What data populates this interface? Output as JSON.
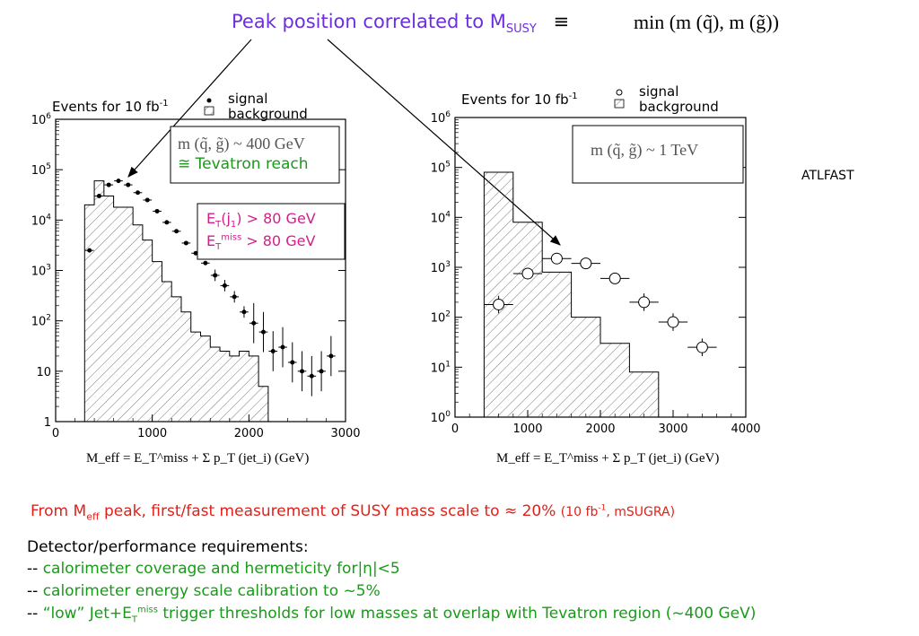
{
  "header": {
    "title_main": "Peak position correlated to M",
    "title_sub": "SUSY",
    "equiv": "≡",
    "min_expr": "min (m (q̃), m (g̃))"
  },
  "atlfast": "ATLFAST",
  "left_panel": {
    "events_label": "Events for 10 fb",
    "events_exp": "-1",
    "legend_signal": "signal",
    "legend_background": "background",
    "box1_line1": "m (q̃, g̃) ~ 400 GeV",
    "box1_line2": "≅ Tevatron reach",
    "box2_line1": "E",
    "box2_line1_sub": "T",
    "box2_line1_rest": "(j",
    "box2_line1_sub2": "1",
    "box2_line1_end": ") > 80 GeV",
    "box2_line2": "E",
    "box2_line2_sub": "T",
    "box2_line2_sup": "miss",
    "box2_line2_end": " > 80 GeV",
    "formula": "M_eff = E_T^miss + Σ p_T (jet_i)  (GeV)"
  },
  "right_panel": {
    "events_label": "Events for 10 fb",
    "events_exp": "-1",
    "legend_signal": "signal",
    "legend_background": "background",
    "box_line1": "m (q̃, g̃) ~ 1 TeV",
    "formula": "M_eff = E_T^miss + Σ p_T (jet_i)  (GeV)"
  },
  "conclusion": {
    "p1": "From M",
    "p1_sub": "eff",
    "p2": " peak, first/fast measurement of   SUSY   mass scale to ≈ 20%",
    "p3": "(10 fb",
    "p3_sup": "-1",
    "p4": ", mSUGRA)"
  },
  "requirements": {
    "title": "Detector/performance requirements:",
    "item1_prefix": "-- ",
    "item1": "calorimeter coverage and hermeticity for|η|<5",
    "item2_prefix": "-- ",
    "item2": "calorimeter energy scale calibration to ~5%",
    "item3_prefix": "-- ",
    "item3a": "“low” Jet+E",
    "item3_sub": "T",
    "item3_sup": "miss",
    "item3b": " trigger thresholds for low masses at overlap with Tevatron region (~400 GeV)"
  },
  "colors": {
    "title": "#6b2fe0",
    "green": "#1a9a1a",
    "magenta": "#d0208a",
    "red": "#e0201a"
  },
  "chart_data": [
    {
      "type": "bar",
      "title": "",
      "xlabel": "M_eff (GeV)",
      "ylabel": "Events for 10 fb-1",
      "xlim": [
        0,
        3000
      ],
      "ylim": [
        1,
        1000000
      ],
      "yscale": "log",
      "x_ticks": [
        "0",
        "1000",
        "2000",
        "3000"
      ],
      "y_ticks": [
        "1",
        "10",
        "10^2",
        "10^3",
        "10^4",
        "10^5",
        "10^6"
      ],
      "series": [
        {
          "name": "background",
          "style": "hatched-histogram",
          "x": [
            300,
            400,
            500,
            600,
            700,
            800,
            900,
            1000,
            1100,
            1200,
            1300,
            1400,
            1500,
            1600,
            1700,
            1800,
            1900,
            2000,
            2100,
            2200,
            2300,
            2400
          ],
          "values": [
            20000,
            60000,
            30000,
            18000,
            18000,
            8000,
            4000,
            1500,
            600,
            300,
            150,
            60,
            50,
            30,
            25,
            20,
            25,
            20,
            5,
            1,
            1,
            1
          ]
        },
        {
          "name": "signal",
          "style": "points",
          "x": [
            350,
            450,
            550,
            650,
            750,
            850,
            950,
            1050,
            1150,
            1250,
            1350,
            1450,
            1550,
            1650,
            1750,
            1850,
            1950,
            2050,
            2150,
            2250,
            2350,
            2450,
            2550,
            2650,
            2750,
            2850
          ],
          "values": [
            2500,
            30000,
            50000,
            60000,
            50000,
            35000,
            25000,
            15000,
            9000,
            6000,
            3500,
            2200,
            1400,
            800,
            500,
            300,
            150,
            90,
            60,
            25,
            30,
            15,
            10,
            8,
            10,
            20
          ]
        }
      ],
      "annotations": [
        "m (q̃, g̃) ~ 400 GeV",
        "≅ Tevatron reach",
        "ET(j1) > 80 GeV",
        "ETmiss > 80 GeV"
      ]
    },
    {
      "type": "bar",
      "title": "",
      "xlabel": "M_eff (GeV)",
      "ylabel": "Events for 10 fb-1",
      "xlim": [
        0,
        4000
      ],
      "ylim": [
        1,
        1000000
      ],
      "yscale": "log",
      "x_ticks": [
        "0",
        "1000",
        "2000",
        "3000",
        "4000"
      ],
      "y_ticks": [
        "10^0",
        "10^1",
        "10^2",
        "10^3",
        "10^4",
        "10^5",
        "10^6"
      ],
      "series": [
        {
          "name": "background",
          "style": "hatched-histogram",
          "x": [
            400,
            800,
            1200,
            1600,
            2000,
            2400,
            2800,
            3200
          ],
          "values": [
            80000,
            8000,
            800,
            100,
            30,
            8,
            1,
            1
          ]
        },
        {
          "name": "signal",
          "style": "open-circles",
          "x": [
            600,
            1000,
            1400,
            1800,
            2200,
            2600,
            3000,
            3400
          ],
          "values": [
            180,
            750,
            1500,
            1200,
            600,
            200,
            80,
            25
          ]
        }
      ],
      "annotations": [
        "m (q̃, g̃) ~ 1 TeV"
      ]
    }
  ]
}
